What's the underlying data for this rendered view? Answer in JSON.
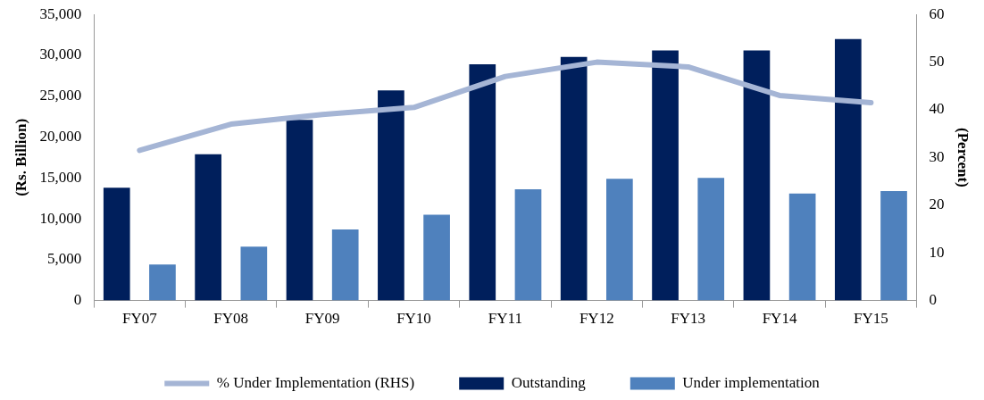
{
  "chart_data": {
    "type": "bar",
    "categories": [
      "FY07",
      "FY08",
      "FY09",
      "FY10",
      "FY11",
      "FY12",
      "FY13",
      "FY14",
      "FY15"
    ],
    "ylabel": "(Rs. Billion)",
    "y2label": "(Percent)",
    "series": [
      {
        "name": "Outstanding",
        "color": "#001f5c",
        "values": [
          13800,
          17900,
          22100,
          25700,
          28900,
          29800,
          30600,
          30600,
          32000
        ]
      },
      {
        "name": "Under implementation",
        "color": "#4f81bd",
        "values": [
          4400,
          6600,
          8700,
          10500,
          13600,
          14900,
          15000,
          13100,
          13400
        ]
      },
      {
        "name": "% Under Implementation (RHS)",
        "type": "line",
        "axis": "y2",
        "color": "#a5b5d5",
        "values": [
          31.5,
          37,
          39,
          40.5,
          47,
          50,
          49,
          43,
          41.5
        ]
      }
    ],
    "ylim": [
      0,
      35000
    ],
    "yticks": [
      0,
      {
        "value": 5000,
        "label": "5,000"
      },
      {
        "value": 10000,
        "label": "10,000"
      },
      {
        "value": 15000,
        "label": "15,000"
      },
      {
        "value": 20000,
        "label": "20,000"
      },
      {
        "value": 25000,
        "label": "25,000"
      },
      {
        "value": 30000,
        "label": "30,000"
      },
      {
        "value": 35000,
        "label": "35,000"
      }
    ],
    "y2lim": [
      0,
      60
    ],
    "y2ticks": [
      0,
      10,
      20,
      30,
      40,
      50,
      60
    ],
    "grid": false,
    "legend": "bottom",
    "marker": "none"
  }
}
